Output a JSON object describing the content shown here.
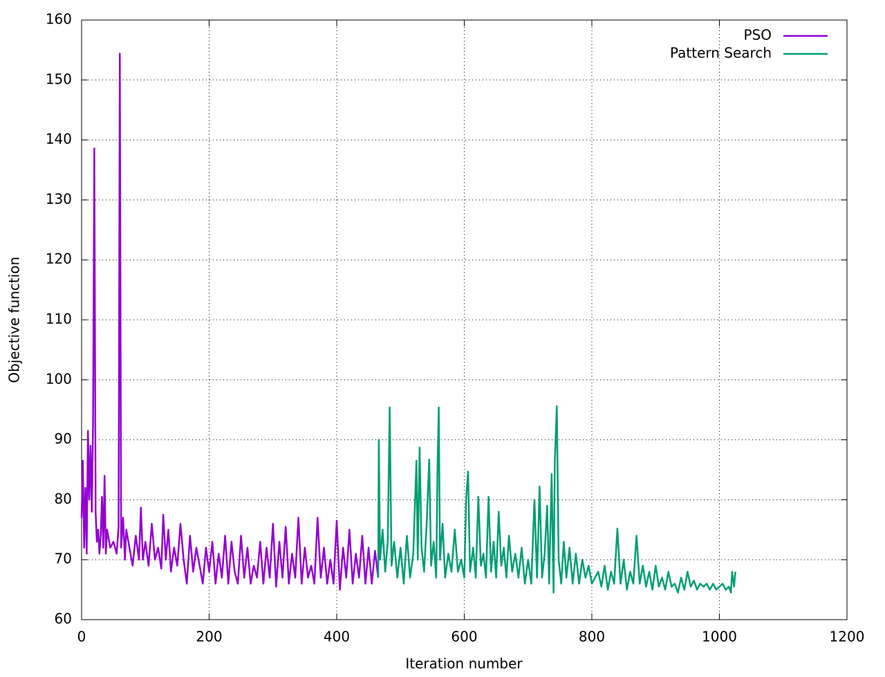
{
  "chart_data": {
    "type": "line",
    "xlabel": "Iteration number",
    "ylabel": "Objective function",
    "xlim": [
      0,
      1200
    ],
    "xticks": [
      0,
      200,
      400,
      600,
      800,
      1000,
      1200
    ],
    "ylim": [
      60,
      160
    ],
    "yticks": [
      60,
      70,
      80,
      90,
      100,
      110,
      120,
      130,
      140,
      150,
      160
    ],
    "grid": true,
    "legend": "top-right",
    "series": [
      {
        "name": "PSO",
        "color": "#9400d3",
        "x": [
          0,
          2,
          4,
          6,
          8,
          10,
          12,
          14,
          16,
          18,
          20,
          22,
          24,
          26,
          28,
          30,
          32,
          34,
          36,
          38,
          40,
          45,
          50,
          55,
          58,
          60,
          62,
          65,
          68,
          70,
          75,
          80,
          85,
          90,
          93,
          96,
          100,
          105,
          110,
          115,
          120,
          125,
          128,
          132,
          136,
          140,
          145,
          150,
          155,
          160,
          165,
          170,
          175,
          180,
          185,
          190,
          195,
          200,
          205,
          210,
          215,
          220,
          225,
          230,
          235,
          240,
          245,
          250,
          255,
          260,
          265,
          270,
          275,
          280,
          285,
          290,
          295,
          300,
          305,
          310,
          315,
          320,
          325,
          330,
          335,
          340,
          345,
          350,
          355,
          360,
          365,
          370,
          375,
          380,
          385,
          390,
          395,
          400,
          405,
          410,
          415,
          420,
          425,
          430,
          435,
          440,
          445,
          450,
          455,
          460,
          465
        ],
        "values": [
          77,
          86.5,
          72,
          82,
          71,
          91.5,
          80,
          89,
          78,
          93,
          138.6,
          78,
          73,
          75,
          71,
          74,
          80.5,
          72,
          84,
          71,
          75,
          72,
          73,
          71,
          75.5,
          154.4,
          72,
          77,
          70,
          75,
          72,
          69,
          74,
          70,
          78.7,
          70,
          73,
          69,
          76,
          70,
          72,
          68.5,
          77.5,
          70,
          75,
          68,
          72,
          69,
          76,
          70,
          66,
          74,
          68,
          72,
          69,
          66,
          72,
          68,
          73,
          66,
          71,
          67,
          74,
          66,
          73,
          68,
          66,
          74,
          67,
          72,
          66,
          69,
          67,
          73,
          66,
          72,
          67,
          76,
          65.5,
          73,
          67,
          75.5,
          66,
          71,
          67,
          77,
          66,
          72,
          67,
          69,
          66,
          77,
          67,
          72,
          66,
          70,
          66,
          76.5,
          65,
          72,
          67,
          75,
          66,
          71,
          67,
          74,
          66,
          72,
          66,
          71.5,
          67
        ]
      },
      {
        "name": "Pattern Search",
        "color": "#009e73",
        "x": [
          465,
          466,
          468,
          472,
          476,
          480,
          483,
          486,
          490,
          495,
          500,
          505,
          510,
          515,
          520,
          525,
          527,
          530,
          533,
          537,
          541,
          545,
          548,
          552,
          556,
          558,
          560,
          562,
          566,
          570,
          575,
          580,
          585,
          590,
          595,
          600,
          603,
          606,
          609,
          614,
          618,
          622,
          626,
          630,
          634,
          638,
          642,
          646,
          650,
          654,
          658,
          662,
          666,
          670,
          675,
          680,
          685,
          690,
          695,
          700,
          705,
          710,
          714,
          718,
          722,
          726,
          730,
          733,
          737,
          740,
          742,
          745,
          748,
          752,
          756,
          760,
          765,
          770,
          775,
          780,
          785,
          790,
          795,
          800,
          805,
          810,
          815,
          820,
          825,
          830,
          835,
          840,
          845,
          850,
          855,
          860,
          865,
          870,
          875,
          880,
          885,
          890,
          895,
          900,
          905,
          910,
          915,
          920,
          925,
          930,
          935,
          940,
          945,
          950,
          955,
          960,
          965,
          970,
          975,
          980,
          985,
          990,
          995,
          1000,
          1005,
          1010,
          1015,
          1018,
          1020,
          1023,
          1025
        ],
        "values": [
          67,
          90,
          70,
          75,
          68,
          73,
          95.4,
          69,
          73,
          67,
          72,
          66,
          74,
          67,
          71,
          86.5,
          70,
          88.7,
          72,
          68,
          76,
          86.7,
          69,
          73,
          67,
          85.5,
          95.4,
          70,
          76,
          67,
          71,
          68,
          75,
          68,
          70,
          67,
          80.5,
          84.7,
          68,
          72,
          67,
          80.5,
          69,
          71,
          67,
          80.5,
          68,
          73,
          67,
          78,
          69,
          72,
          67,
          74,
          68,
          71,
          67,
          72,
          66,
          70,
          66,
          80,
          67,
          82.2,
          67,
          71,
          79,
          66,
          84.3,
          64.5,
          86.5,
          95.6,
          70,
          66,
          73,
          67,
          72,
          66,
          71,
          66,
          70,
          67,
          69,
          66,
          67,
          68,
          65.5,
          69,
          65,
          68,
          66,
          75.2,
          66,
          70,
          65,
          68,
          66,
          74,
          66,
          69,
          65.5,
          68,
          65,
          69,
          65.5,
          67,
          65,
          68,
          65.5,
          66,
          64.5,
          67,
          65,
          68,
          65.5,
          66.5,
          65,
          66,
          65.5,
          66,
          65,
          66,
          65,
          65.5,
          66,
          65,
          65.5,
          64.5,
          68,
          65.5,
          68
        ]
      }
    ]
  }
}
